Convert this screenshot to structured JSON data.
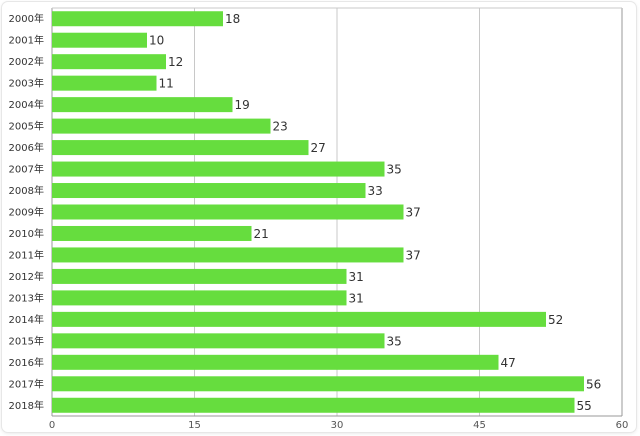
{
  "chart_data": {
    "type": "bar",
    "orientation": "horizontal",
    "categories": [
      "2000年",
      "2001年",
      "2002年",
      "2003年",
      "2004年",
      "2005年",
      "2006年",
      "2007年",
      "2008年",
      "2009年",
      "2010年",
      "2011年",
      "2012年",
      "2013年",
      "2014年",
      "2015年",
      "2016年",
      "2017年",
      "2018年"
    ],
    "values": [
      18,
      10,
      12,
      11,
      19,
      23,
      27,
      35,
      33,
      37,
      21,
      37,
      31,
      31,
      52,
      35,
      47,
      56,
      55
    ],
    "xlim": [
      0,
      60
    ],
    "xticks": [
      "0",
      "15",
      "30",
      "45",
      "60"
    ],
    "grid": "vertical",
    "bar_color": "#66dd3e",
    "title": "",
    "xlabel": "",
    "ylabel": ""
  }
}
